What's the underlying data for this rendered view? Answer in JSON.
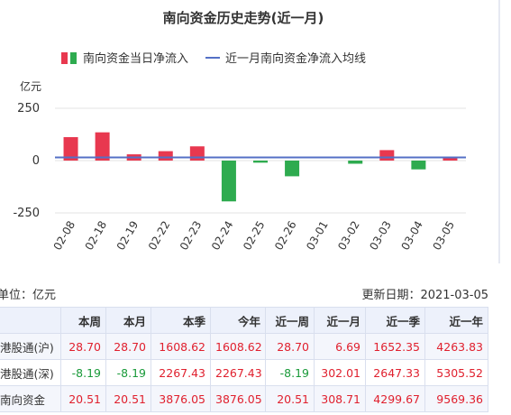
{
  "chart_data": {
    "type": "bar",
    "title": "南向资金历史走势(近一月)",
    "unit": "亿元",
    "categories": [
      "02-08",
      "02-18",
      "02-19",
      "02-22",
      "02-23",
      "02-24",
      "02-25",
      "02-26",
      "03-01",
      "03-02",
      "03-03",
      "03-04",
      "03-05"
    ],
    "series": [
      {
        "name": "南向资金当日净流入",
        "type": "bar",
        "values": [
          112,
          135,
          30,
          45,
          68,
          -195,
          -10,
          -75,
          0,
          -15,
          50,
          -42,
          12
        ]
      },
      {
        "name": "近一月南向资金净流入均线",
        "type": "line",
        "value": 15
      }
    ],
    "ylim": [
      -250,
      250
    ],
    "yticks": [
      "250",
      "0",
      "-250"
    ],
    "legend_position": "top",
    "colors": {
      "positive": "#e8384f",
      "negative": "#2eab4f",
      "average": "#5470c6"
    }
  },
  "meta": {
    "unit_label": "单位：亿元",
    "update_label": "更新日期：2021-03-05"
  },
  "table": {
    "headers": [
      "",
      "本周",
      "本月",
      "本季",
      "今年",
      "近一周",
      "近一月",
      "近一季",
      "近一年"
    ],
    "rows": [
      {
        "name": "港股通(沪)",
        "values": [
          "28.70",
          "28.70",
          "1608.62",
          "1608.62",
          "28.70",
          "6.69",
          "1652.35",
          "4263.83"
        ]
      },
      {
        "name": "港股通(深)",
        "values": [
          "-8.19",
          "-8.19",
          "2267.43",
          "2267.43",
          "-8.19",
          "302.01",
          "2647.33",
          "5305.52"
        ]
      },
      {
        "name": "南向资金",
        "values": [
          "20.51",
          "20.51",
          "3876.05",
          "3876.05",
          "20.51",
          "308.71",
          "4299.67",
          "9569.36"
        ]
      }
    ]
  }
}
